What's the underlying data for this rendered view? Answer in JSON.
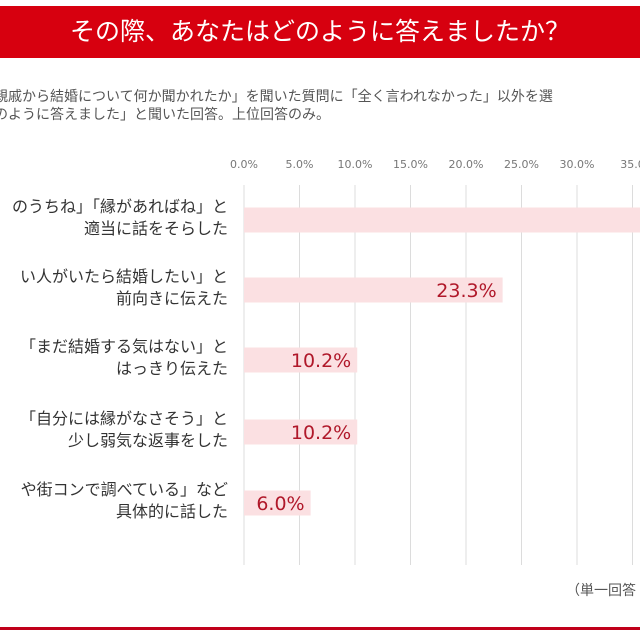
{
  "header": {
    "title": "その際、あなたはどのように答えましたか？"
  },
  "subtitle": [
    "親戚から結婚について何か聞かれたか」を聞いた質問に「全く言われなかった」以外を選",
    "のように答えました」と聞いた回答。上位回答のみ。"
  ],
  "note": "（単一回答",
  "chart_data": {
    "type": "bar",
    "orientation": "horizontal",
    "categories": [
      [
        "のうちね」「縁があればね」と",
        "適当に話をそらした"
      ],
      [
        "い人がいたら結婚したい」と",
        "前向きに伝えた"
      ],
      [
        "「まだ結婚する気はない」と",
        "はっきり伝えた"
      ],
      [
        "「自分には縁がなさそう」と",
        "少し弱気な返事をした"
      ],
      [
        "や街コンで調べている」など",
        "具体的に話した"
      ]
    ],
    "values": [
      36.0,
      23.3,
      10.2,
      10.2,
      6.0
    ],
    "data_labels": [
      "",
      "23.3%",
      "10.2%",
      "10.2%",
      "6.0%"
    ],
    "x_ticks": [
      "0.0%",
      "5.0%",
      "10.0%",
      "15.0%",
      "20.0%",
      "25.0%",
      "30.0%",
      "35.0"
    ],
    "xlim": [
      0,
      35
    ],
    "grid": true,
    "colors": {
      "bar": "#fbe0e2",
      "label": "#b0182a",
      "header": "#d7000f"
    }
  }
}
